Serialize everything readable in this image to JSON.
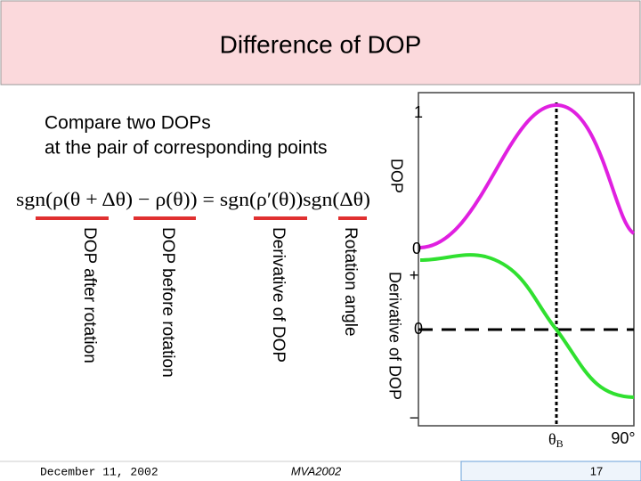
{
  "header": {
    "title": "Difference of DOP"
  },
  "body": {
    "lines": [
      "Compare two DOPs",
      "at the pair of corresponding points"
    ],
    "equation": "sgn(ρ(θ + Δθ) − ρ(θ)) = sgn(ρ′(θ))sgn(Δθ)",
    "term_labels": [
      "DOP after rotation",
      "DOP before rotation",
      "Derivative of DOP",
      "Rotation angle"
    ]
  },
  "plot": {
    "dop_axis": {
      "label": "DOP",
      "top": "1",
      "bottom": "0"
    },
    "derivative_axis": {
      "label": "Derivative of DOP",
      "plus": "+",
      "zero": "0",
      "minus": "−"
    },
    "x_labels": {
      "theta": "θ",
      "sub": "B",
      "end": "90°"
    }
  },
  "footer": {
    "date": "December 11, 2002",
    "conference": "MVA2002",
    "page": "17"
  }
}
